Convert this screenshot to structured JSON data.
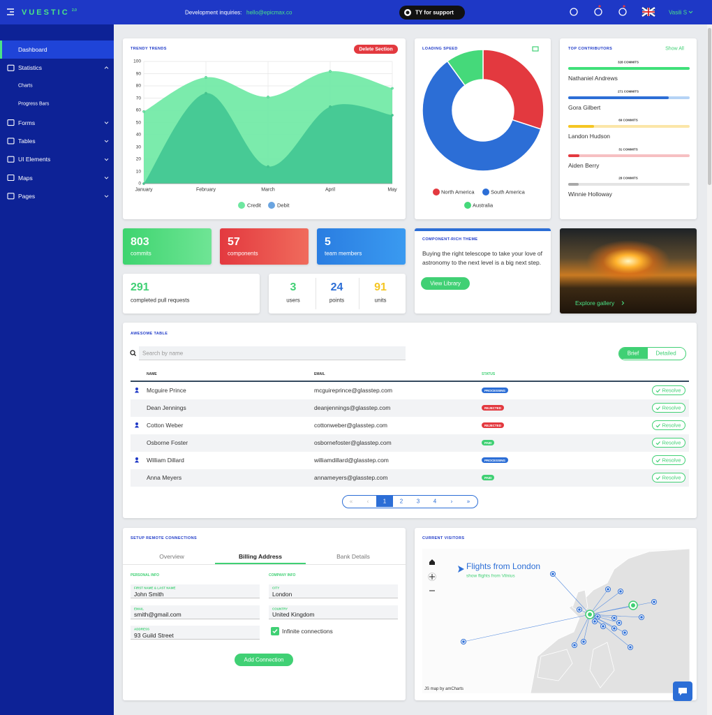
{
  "header": {
    "logo": "VUESTIC",
    "version": "2.0",
    "inquiries_label": "Development inquiries:",
    "email": "hello@epicmax.co",
    "support": "TY for support",
    "user": "Vasili S"
  },
  "sidebar": {
    "active": 0,
    "items": [
      {
        "label": "Dashboard"
      },
      {
        "label": "Statistics",
        "children": [
          "Charts",
          "Progress Bars"
        ]
      },
      {
        "label": "Forms"
      },
      {
        "label": "Tables"
      },
      {
        "label": "UI Elements"
      },
      {
        "label": "Maps"
      },
      {
        "label": "Pages"
      }
    ]
  },
  "chart_data": [
    {
      "type": "area",
      "title": "TRENDY TRENDS",
      "categories": [
        "January",
        "February",
        "March",
        "April",
        "May"
      ],
      "ylim": [
        0,
        100
      ],
      "yticks": [
        0,
        10,
        20,
        30,
        40,
        50,
        60,
        70,
        80,
        90,
        100
      ],
      "grid": true,
      "legend": "bottom",
      "series": [
        {
          "name": "Credit",
          "color": "#74eaa8",
          "legend_color": "#6ee7a0",
          "values": [
            59,
            87,
            71,
            92,
            78
          ]
        },
        {
          "name": "Debit",
          "color": "#45c893",
          "legend_color": "#6aa4e0",
          "values": [
            0,
            74,
            14,
            63,
            56
          ]
        }
      ]
    },
    {
      "type": "doughnut",
      "title": "LOADING SPEED",
      "categories": [
        "North America",
        "South America",
        "Australia"
      ],
      "values": [
        30,
        60,
        10
      ],
      "colors": [
        "#e3393f",
        "#2c6ed6",
        "#45d97a"
      ],
      "legend": "bottom"
    }
  ],
  "trends_action": "Delete Section",
  "contributors": {
    "title": "TOP CONTRIBUTORS",
    "action": "Show All",
    "items": [
      {
        "name": "Nathaniel Andrews",
        "commits": 328,
        "commits_label": "328 COMMITS",
        "color": "#40e07a",
        "track": "#dff7e7"
      },
      {
        "name": "Gora Gilbert",
        "commits": 271,
        "commits_label": "271 COMMITS",
        "color": "#2c6ed6",
        "track": "#b5d3f5"
      },
      {
        "name": "Landon Hudson",
        "commits": 69,
        "commits_label": "69 COMMITS",
        "color": "#f5c623",
        "track": "#fbe6a8"
      },
      {
        "name": "Aiden Berry",
        "commits": 31,
        "commits_label": "31 COMMITS",
        "color": "#e3393f",
        "track": "#f6c0c2"
      },
      {
        "name": "Winnie Holloway",
        "commits": 28,
        "commits_label": "28 COMMITS",
        "color": "#a8a8a8",
        "track": "#e4e4e4"
      }
    ]
  },
  "stats": {
    "cards": [
      {
        "value": 803,
        "label": "commits",
        "colors": [
          "#3ed46f",
          "#6fe595"
        ]
      },
      {
        "value": 57,
        "label": "components",
        "colors": [
          "#e3393f",
          "#f06b5c"
        ]
      },
      {
        "value": 5,
        "label": "team members",
        "colors": [
          "#2a7de1",
          "#3a9af0"
        ]
      }
    ],
    "pull_requests": {
      "value": 291,
      "label": "completed pull requests",
      "color": "#40d074"
    },
    "counters": [
      {
        "value": 3,
        "label": "users",
        "color": "#40d074"
      },
      {
        "value": 24,
        "label": "points",
        "color": "#2c6ed6"
      },
      {
        "value": 91,
        "label": "units",
        "color": "#f5c623"
      }
    ]
  },
  "theme": {
    "title": "COMPONENT-RICH THEME",
    "text": "Buying the right telescope to take your love of astronomy to the next level is a big next step.",
    "action": "View Library"
  },
  "gallery": {
    "action": "Explore gallery"
  },
  "table": {
    "title": "AWESOME TABLE",
    "search_placeholder": "Search by name",
    "views": [
      "Brief",
      "Detailed"
    ],
    "columns": [
      "NAME",
      "EMAIL",
      "STATUS"
    ],
    "action": "Resolve",
    "rows": [
      {
        "name": "Mcguire Prince",
        "email": "mcguireprince@glasstep.com",
        "status": "PROCESSING",
        "status_color": "#2c6ed6"
      },
      {
        "name": "Dean Jennings",
        "email": "deanjennings@glasstep.com",
        "status": "REJECTED",
        "status_color": "#e3393f"
      },
      {
        "name": "Cotton Weber",
        "email": "cottonweber@glasstep.com",
        "status": "REJECTED",
        "status_color": "#e3393f"
      },
      {
        "name": "Osborne Foster",
        "email": "osbornefoster@glasstep.com",
        "status": "PAID",
        "status_color": "#40d074"
      },
      {
        "name": "William Dillard",
        "email": "williamdillard@glasstep.com",
        "status": "PROCESSING",
        "status_color": "#2c6ed6"
      },
      {
        "name": "Anna Meyers",
        "email": "annameyers@glasstep.com",
        "status": "PAID",
        "status_color": "#40d074"
      }
    ],
    "pagination": {
      "first": "«",
      "prev": "‹",
      "pages": [
        1,
        2,
        3,
        4
      ],
      "next": "›",
      "last": "»",
      "current": 1
    }
  },
  "connections": {
    "title": "SETUP REMOTE CONNECTIONS",
    "tabs": [
      "Overview",
      "Billing Address",
      "Bank Details"
    ],
    "active_tab": 1,
    "personal": {
      "title": "PERSONAL INFO",
      "fields": [
        {
          "label": "FIRST NAME & LAST NAME",
          "value": "John Smith"
        },
        {
          "label": "EMAIL",
          "value": "smith@gmail.com"
        },
        {
          "label": "ADDRESS",
          "value": "93  Guild Street"
        }
      ]
    },
    "company": {
      "title": "COMPANY INFO",
      "fields": [
        {
          "label": "CITY",
          "value": "London"
        },
        {
          "label": "COUNTRY",
          "value": "United Kingdom"
        }
      ]
    },
    "checkbox": {
      "label": "Infinite connections",
      "checked": true
    },
    "action": "Add Connection"
  },
  "visitors": {
    "title": "CURRENT VISITORS",
    "map_title": "Flights from London",
    "map_subtitle": "show flights from Vilnius",
    "credit": "JS map by amCharts"
  }
}
